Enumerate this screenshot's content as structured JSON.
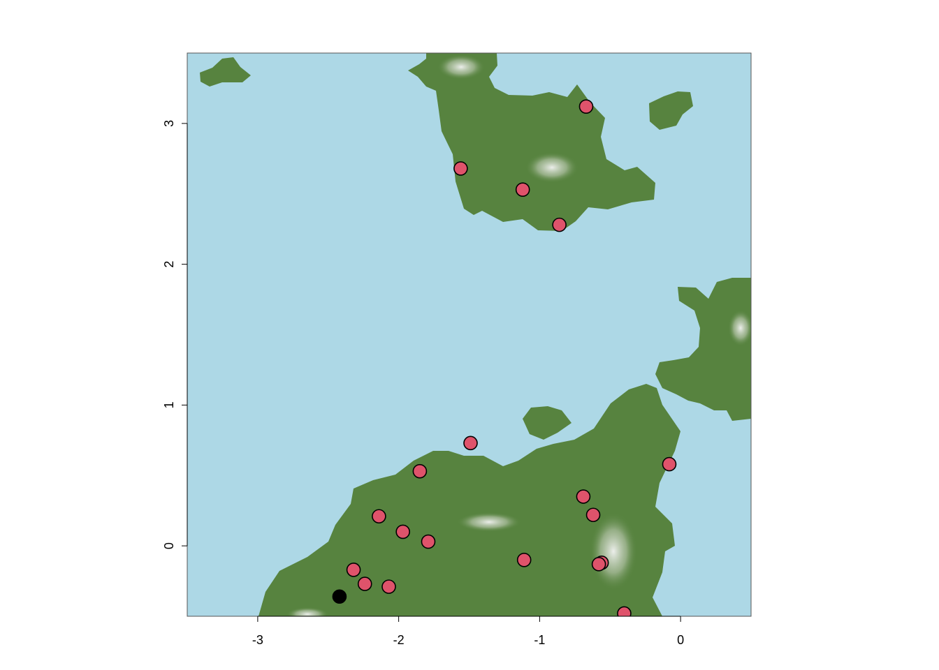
{
  "chart_data": {
    "type": "scatter",
    "title": "",
    "xlabel": "",
    "ylabel": "",
    "xlim": [
      -3.5,
      0.5
    ],
    "ylim": [
      -0.5,
      3.5
    ],
    "x_ticks": [
      -3,
      -2,
      -1,
      0
    ],
    "y_ticks": [
      0,
      1,
      2,
      3
    ],
    "x_tick_labels": [
      "-3",
      "-2",
      "-1",
      "0"
    ],
    "y_tick_labels": [
      "0",
      "1",
      "2",
      "3"
    ],
    "grid": false,
    "legend": "none",
    "background_raster": {
      "description": "elevation raster: water (light blue) and land (green to white by elevation)",
      "water_color": "#add8e6",
      "land_color": "#57833f",
      "peak_color": "#f2f2f2"
    },
    "series": [
      {
        "color": "#df536b",
        "outline": "#000000",
        "points": [
          [
            -0.67,
            3.12
          ],
          [
            -1.56,
            2.68
          ],
          [
            -1.12,
            2.53
          ],
          [
            -0.86,
            2.28
          ],
          [
            -1.49,
            0.73
          ],
          [
            -0.08,
            0.58
          ],
          [
            -1.85,
            0.53
          ],
          [
            -0.69,
            0.35
          ],
          [
            -2.14,
            0.21
          ],
          [
            -0.62,
            0.22
          ],
          [
            -1.97,
            0.1
          ],
          [
            -1.79,
            0.03
          ],
          [
            -1.11,
            -0.1
          ],
          [
            -0.56,
            -0.12
          ],
          [
            -0.58,
            -0.13
          ],
          [
            -2.32,
            -0.17
          ],
          [
            -2.24,
            -0.27
          ],
          [
            -2.07,
            -0.29
          ],
          [
            -0.4,
            -0.48
          ]
        ]
      },
      {
        "color": "#000000",
        "outline": "#000000",
        "points": [
          [
            -2.42,
            -0.36
          ]
        ]
      }
    ]
  }
}
